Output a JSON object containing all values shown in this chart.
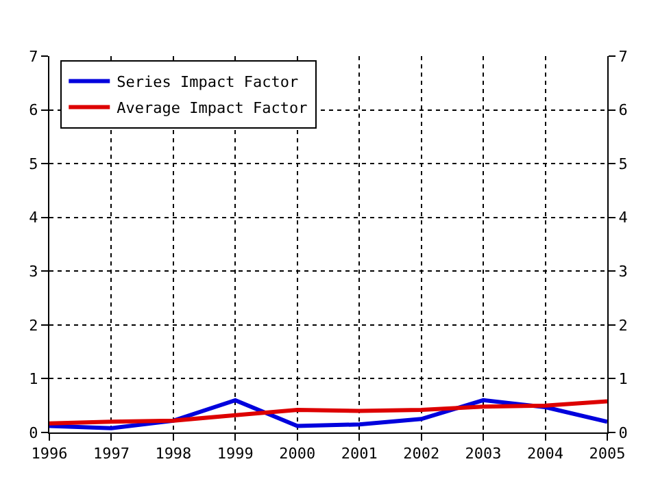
{
  "chart_data": {
    "type": "line",
    "x": [
      1996,
      1997,
      1998,
      1999,
      2000,
      2001,
      2002,
      2003,
      2004,
      2005
    ],
    "series": [
      {
        "name": "Series Impact Factor",
        "color": "#0000dd",
        "values": [
          0.12,
          0.08,
          0.22,
          0.6,
          0.12,
          0.15,
          0.25,
          0.6,
          0.47,
          0.2
        ]
      },
      {
        "name": "Average Impact Factor",
        "color": "#dd0000",
        "values": [
          0.17,
          0.2,
          0.22,
          0.32,
          0.42,
          0.4,
          0.42,
          0.48,
          0.5,
          0.58
        ]
      }
    ],
    "xlim": [
      1996,
      2005
    ],
    "xticks": [
      1996,
      1997,
      1998,
      1999,
      2000,
      2001,
      2002,
      2003,
      2004,
      2005
    ],
    "ylim": [
      0,
      7
    ],
    "yticks": [
      0,
      1,
      2,
      3,
      4,
      5,
      6,
      7
    ],
    "y2lim": [
      0,
      7
    ],
    "y2ticks": [
      0,
      1,
      2,
      3,
      4,
      5,
      6,
      7
    ],
    "grid": true,
    "legend": "top left",
    "line_style": "solid",
    "marker": "none"
  }
}
